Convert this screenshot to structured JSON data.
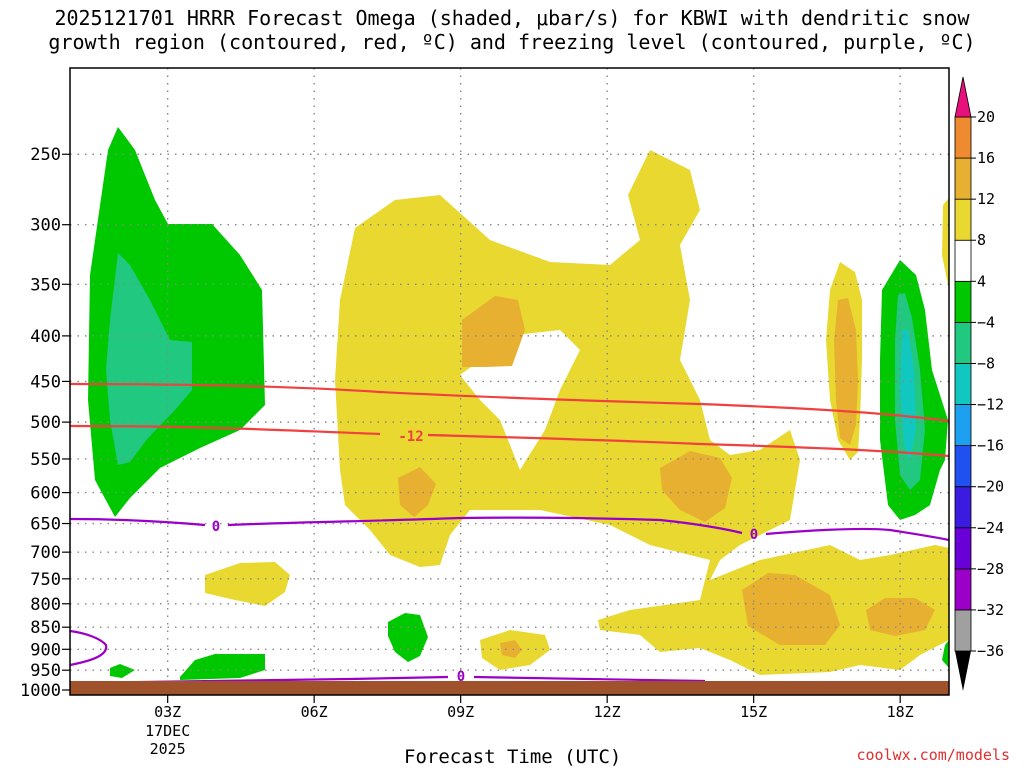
{
  "title": "2025121701 HRRR Forecast Omega (shaded, μbar/s) for KBWI with dendritic snow\ngrowth region (contoured, red, ºC) and freezing level (contoured, purple, ºC)",
  "credit": "coolwx.com/models",
  "chart_data": {
    "type": "heatmap",
    "title": "2025121701 HRRR Forecast Omega (shaded, μbar/s) for KBWI with dendritic snow growth region (contoured, red, ºC) and freezing level (contoured, purple, ºC)",
    "xlabel": "Forecast Time (UTC)",
    "ylabel": "",
    "x_ticks": [
      "03Z",
      "06Z",
      "09Z",
      "12Z",
      "15Z",
      "18Z"
    ],
    "x_tick_hours": [
      3,
      6,
      9,
      12,
      15,
      18
    ],
    "x_sub_label": [
      "17DEC",
      "2025"
    ],
    "xlim": [
      1,
      19
    ],
    "y_ticks": [
      250,
      300,
      350,
      400,
      450,
      500,
      550,
      600,
      650,
      700,
      750,
      800,
      850,
      900,
      950,
      1000
    ],
    "ylim_hpa": [
      1013,
      200
    ],
    "grid": true,
    "colorbar": {
      "levels": [
        -36,
        -32,
        -28,
        -24,
        -20,
        -16,
        -12,
        -8,
        -4,
        4,
        8,
        12,
        16,
        20
      ],
      "labels": [
        "20",
        "16",
        "12",
        "8",
        "4",
        "−4",
        "−8",
        "−12",
        "−16",
        "−20",
        "−24",
        "−28",
        "−32",
        "−36"
      ],
      "colors": [
        "#a0a0a0",
        "#9b00c8",
        "#6a00d8",
        "#3b1be0",
        "#1f50f0",
        "#1ea0f0",
        "#10c8c0",
        "#20c880",
        "#00c800",
        "#ffffff",
        "#e8d830",
        "#e8b030",
        "#ee8a30",
        "#f04848",
        "#e8107a"
      ]
    },
    "contours": [
      {
        "name": "-12",
        "color": "#f04040",
        "label_shown": true
      },
      {
        "name": "0",
        "color": "#9a00c8",
        "label_shown": true
      }
    ]
  }
}
